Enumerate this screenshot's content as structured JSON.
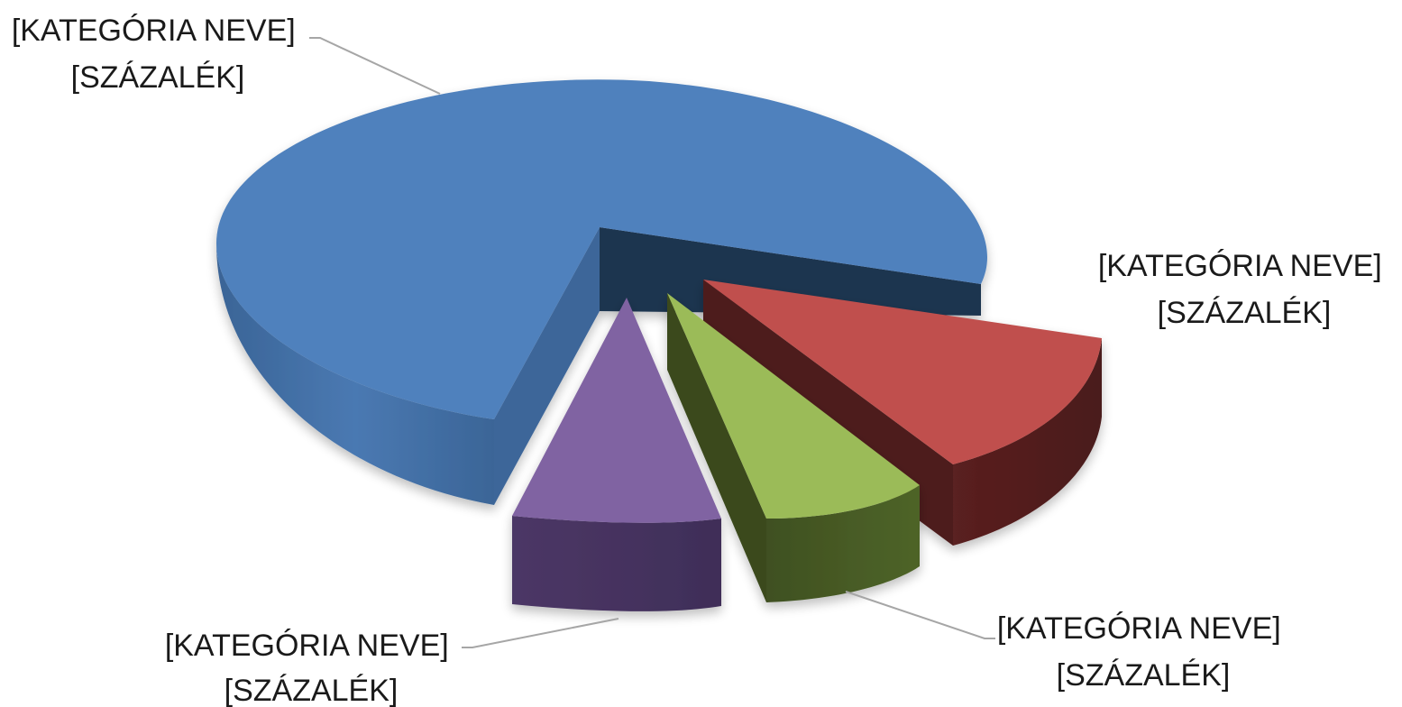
{
  "chart_data": {
    "type": "pie",
    "title": "",
    "labels_shown": "category name and percentage placeholders",
    "slices": [
      {
        "name": "[KATEGÓRIA NEVE]",
        "value_label": "[SZÁZALÉK]",
        "value": 75,
        "color": "#4F81BD",
        "exploded": false
      },
      {
        "name": "[KATEGÓRIA NEVE]",
        "value_label": "[SZÁZALÉK]",
        "value": 12,
        "color": "#C0504D",
        "exploded": true
      },
      {
        "name": "[KATEGÓRIA NEVE]",
        "value_label": "[SZÁZALÉK]",
        "value": 7,
        "color": "#9BBB59",
        "exploded": true
      },
      {
        "name": "[KATEGÓRIA NEVE]",
        "value_label": "[SZÁZALÉK]",
        "value": 6,
        "color": "#8064A2",
        "exploded": true
      }
    ]
  }
}
